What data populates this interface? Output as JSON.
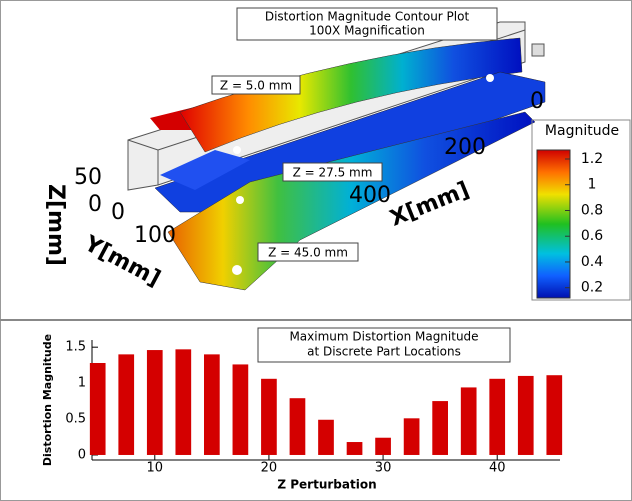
{
  "chart_data": [
    {
      "type": "contour",
      "title_lines": [
        "Distortion Magnitude Contour Plot",
        "100X Magnification"
      ],
      "annotations": [
        "Z = 5.0 mm",
        "Z = 27.5 mm",
        "Z = 45.0 mm"
      ],
      "x_label": "X[mm]",
      "y_label": "Y[mm]",
      "z_label": "Z[mm]",
      "xticks": [
        0,
        200,
        400
      ],
      "yticks": [
        0,
        100
      ],
      "zticks": [
        50,
        0
      ],
      "colorbar_label": "Magnitude",
      "clim": [
        0.12,
        1.27
      ],
      "cticks": [
        1.2,
        1,
        0.8,
        0.6,
        0.4,
        0.2
      ]
    },
    {
      "type": "bar",
      "title_lines": [
        "Maximum Distortion Magnitude",
        "at Discrete Part Locations"
      ],
      "x_label": "Z Perturbation",
      "y_label": "Distortion Magnitude",
      "x": [
        5,
        7.5,
        10,
        12.5,
        15,
        17.5,
        20,
        22.5,
        25,
        27.5,
        30,
        32.5,
        35,
        37.5,
        40,
        42.5,
        45
      ],
      "values": [
        1.28,
        1.4,
        1.46,
        1.47,
        1.4,
        1.26,
        1.06,
        0.79,
        0.49,
        0.18,
        0.24,
        0.51,
        0.75,
        0.94,
        1.06,
        1.1,
        1.11
      ],
      "color": "#d40000",
      "xlim": [
        4.5,
        45.5
      ],
      "ylim": [
        -0.07,
        1.6
      ],
      "xticks": [
        10,
        20,
        30,
        40
      ],
      "yticks": [
        0,
        0.5,
        1,
        1.5
      ]
    }
  ]
}
